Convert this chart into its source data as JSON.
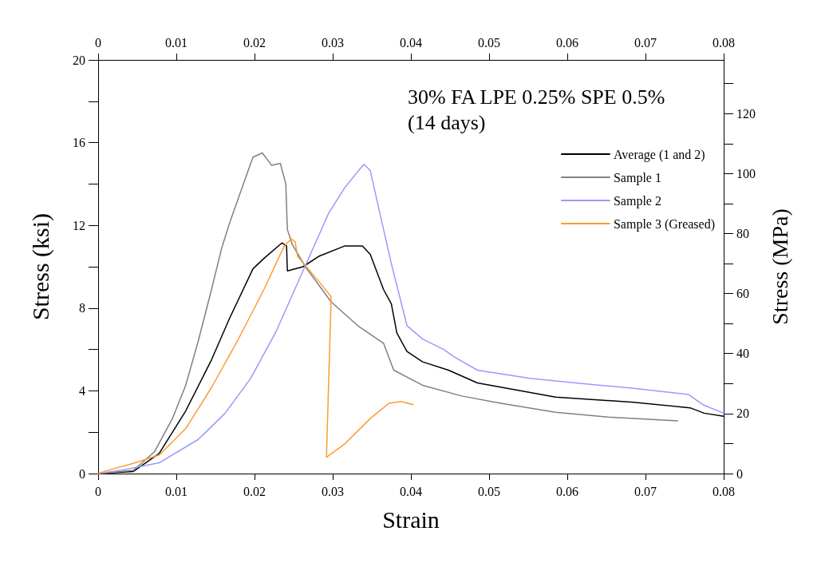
{
  "chart_data": {
    "type": "line",
    "title": "30% FA LPE 0.25% SPE 0.5%\n(14 days)",
    "xlabel": "Strain",
    "ylabel": "Stress (ksi)",
    "y2label": "Stress (MPa)",
    "xlim": [
      0,
      0.08
    ],
    "xticks": [
      0,
      0.01,
      0.02,
      0.03,
      0.04,
      0.05,
      0.06,
      0.07,
      0.08
    ],
    "x2lim": [
      0,
      0.08
    ],
    "x2ticks": [
      0,
      0.01,
      0.02,
      0.03,
      0.04,
      0.05,
      0.06,
      0.07,
      0.08
    ],
    "ylim": [
      0,
      20
    ],
    "yticks": [
      0,
      {
        "value": 2,
        "label": null
      },
      4,
      {
        "value": 6,
        "label": null
      },
      8,
      {
        "value": 10,
        "label": null
      },
      12,
      {
        "value": 14,
        "label": null
      },
      16,
      {
        "value": 18,
        "label": null
      },
      20
    ],
    "y2lim": [
      0,
      137.9
    ],
    "y2ticks": [
      0,
      {
        "value": 10,
        "label": null
      },
      20,
      {
        "value": 30,
        "label": null
      },
      40,
      {
        "value": 50,
        "label": null
      },
      60,
      {
        "value": 70,
        "label": null
      },
      80,
      {
        "value": 90,
        "label": null
      },
      100,
      {
        "value": 110,
        "label": null
      },
      120,
      {
        "value": 130,
        "label": null
      }
    ],
    "grid": false,
    "legend": "top right",
    "marker": "none",
    "line_style": "solid",
    "series": [
      {
        "name": "Average (1 and 2)",
        "color": "#000000",
        "x": [
          0,
          0.0045,
          0.0078,
          0.0112,
          0.0145,
          0.0168,
          0.0198,
          0.0212,
          0.0235,
          0.0241,
          0.0242,
          0.0262,
          0.0282,
          0.0315,
          0.0338,
          0.0348,
          0.0365,
          0.0375,
          0.0382,
          0.0395,
          0.0415,
          0.0448,
          0.0485,
          0.0585,
          0.0685,
          0.0757,
          0.0775,
          0.08
        ],
        "values": [
          0,
          0.1,
          0.97,
          3.03,
          5.5,
          7.5,
          9.9,
          10.4,
          11.15,
          11,
          9.8,
          10,
          10.5,
          11,
          11,
          10.6,
          8.9,
          8.2,
          6.8,
          5.9,
          5.4,
          5,
          4.38,
          3.7,
          3.45,
          3.18,
          2.92,
          2.77
        ]
      },
      {
        "name": "Sample 1",
        "color": "#808080",
        "x": [
          0,
          0.0045,
          0.0072,
          0.0095,
          0.0112,
          0.0128,
          0.0145,
          0.0158,
          0.0168,
          0.0182,
          0.0198,
          0.021,
          0.0222,
          0.0233,
          0.024,
          0.0242,
          0.0248,
          0.0265,
          0.0298,
          0.0332,
          0.0365,
          0.0378,
          0.0415,
          0.0465,
          0.0515,
          0.0585,
          0.0652,
          0.0741
        ],
        "values": [
          0,
          0.15,
          1.05,
          2.66,
          4.27,
          6.4,
          8.9,
          10.9,
          12.1,
          13.6,
          15.3,
          15.5,
          14.9,
          15,
          14,
          11.8,
          11.1,
          10,
          8.3,
          7.15,
          6.3,
          5,
          4.27,
          3.75,
          3.4,
          2.96,
          2.73,
          2.55
        ]
      },
      {
        "name": "Sample 2",
        "color": "#9999ff",
        "x": [
          0,
          0.0028,
          0.0078,
          0.0128,
          0.0162,
          0.0195,
          0.0228,
          0.0262,
          0.0295,
          0.0315,
          0.0332,
          0.034,
          0.0348,
          0.0362,
          0.0375,
          0.0395,
          0.0415,
          0.0442,
          0.0455,
          0.0485,
          0.0552,
          0.0618,
          0.0685,
          0.0755,
          0.0775,
          0.08
        ],
        "values": [
          0,
          0.15,
          0.52,
          1.65,
          2.9,
          4.6,
          6.9,
          9.8,
          12.6,
          13.8,
          14.6,
          14.95,
          14.65,
          12.3,
          10.15,
          7.15,
          6.5,
          6,
          5.65,
          5,
          4.6,
          4.35,
          4.12,
          3.82,
          3.3,
          2.92
        ]
      },
      {
        "name": "Sample 3 (Greased)",
        "color": "#ff9933",
        "x": [
          0,
          0.0012,
          0.0045,
          0.0078,
          0.0112,
          0.0145,
          0.0178,
          0.0212,
          0.0238,
          0.0247,
          0.0252,
          0.0255,
          0.0282,
          0.0298,
          0.0292,
          0.0315,
          0.0348,
          0.0372,
          0.0388,
          0.0403
        ],
        "values": [
          0,
          0.15,
          0.49,
          0.9,
          2.17,
          4.16,
          6.4,
          8.9,
          11,
          11.35,
          11.2,
          10.5,
          9.3,
          8.55,
          0.79,
          1.42,
          2.66,
          3.4,
          3.48,
          3.33
        ]
      }
    ]
  }
}
